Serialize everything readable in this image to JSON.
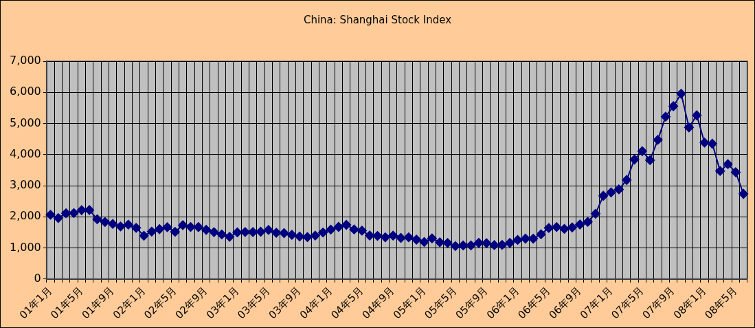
{
  "chart_data": {
    "type": "line",
    "title": "China: Shanghai Stock Index",
    "categories": [
      "01年1月",
      null,
      null,
      null,
      "01年5月",
      null,
      null,
      null,
      "01年9月",
      null,
      null,
      null,
      "02年1月",
      null,
      null,
      null,
      "02年5月",
      null,
      null,
      null,
      "02年9月",
      null,
      null,
      null,
      "03年1月",
      null,
      null,
      null,
      "03年5月",
      null,
      null,
      null,
      "03年9月",
      null,
      null,
      null,
      "04年1月",
      null,
      null,
      null,
      "04年5月",
      null,
      null,
      null,
      "04年9月",
      null,
      null,
      null,
      "05年1月",
      null,
      null,
      null,
      "05年5月",
      null,
      null,
      null,
      "05年9月",
      null,
      null,
      null,
      "06年1月",
      null,
      null,
      null,
      "06年5月",
      null,
      null,
      null,
      "06年9月",
      null,
      null,
      null,
      "07年1月",
      null,
      null,
      null,
      "07年5月",
      null,
      null,
      null,
      "07年9月",
      null,
      null,
      null,
      "08年1月",
      null,
      null,
      null,
      "08年5月",
      null
    ],
    "series": [
      {
        "color": "#000080",
        "values": [
          2065,
          1960,
          2113,
          2120,
          2214,
          2218,
          1921,
          1834,
          1771,
          1690,
          1748,
          1646,
          1391,
          1524,
          1604,
          1665,
          1517,
          1733,
          1673,
          1670,
          1582,
          1508,
          1434,
          1358,
          1500,
          1512,
          1510,
          1521,
          1577,
          1487,
          1477,
          1421,
          1367,
          1349,
          1397,
          1497,
          1590,
          1675,
          1742,
          1595,
          1555,
          1399,
          1387,
          1342,
          1396,
          1321,
          1341,
          1266,
          1191,
          1306,
          1181,
          1159,
          1060,
          1080,
          1083,
          1162,
          1155,
          1092,
          1099,
          1161,
          1258,
          1299,
          1298,
          1440,
          1641,
          1672,
          1613,
          1658,
          1752,
          1838,
          2099,
          2675,
          2786,
          2881,
          3183,
          3841,
          4109,
          3820,
          4471,
          5218,
          5552,
          5955,
          4871,
          5262,
          4383,
          4348,
          3473,
          3693,
          3433,
          2736
        ]
      }
    ],
    "ylim": [
      0,
      7000
    ],
    "yticks": [
      {
        "value": 0,
        "label": "0"
      },
      {
        "value": 1000,
        "label": "1,000"
      },
      {
        "value": 2000,
        "label": "2,000"
      },
      {
        "value": 3000,
        "label": "3,000"
      },
      {
        "value": 4000,
        "label": "4,000"
      },
      {
        "value": 5000,
        "label": "5,000"
      },
      {
        "value": 6000,
        "label": "6,000"
      },
      {
        "value": 7000,
        "label": "7,000"
      }
    ],
    "grid": true,
    "legend": false,
    "marker": "diamond",
    "line_style": "solid"
  }
}
